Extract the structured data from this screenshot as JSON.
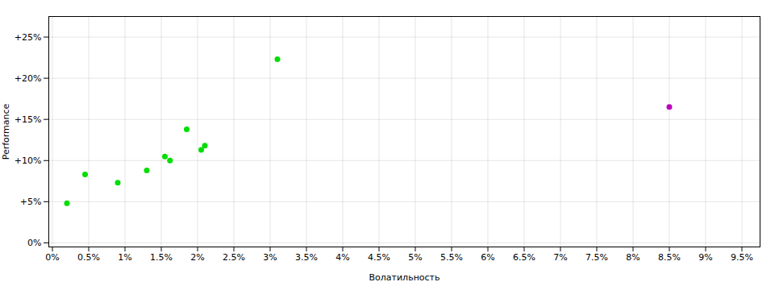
{
  "chart_data": {
    "type": "scatter",
    "xlabel": "Волатильность",
    "ylabel": "Performance",
    "series": [
      {
        "color": "#00dd00",
        "x": [
          0.2,
          0.45,
          0.9,
          1.3,
          1.55,
          1.62,
          1.85,
          2.05,
          2.1,
          3.1
        ],
        "values": [
          4.8,
          8.3,
          7.3,
          8.8,
          10.5,
          10.0,
          13.8,
          11.3,
          11.8,
          22.3
        ]
      },
      {
        "color": "#bb00bb",
        "x": [
          8.5
        ],
        "values": [
          16.5
        ]
      }
    ],
    "xlim": [
      -0.05,
      9.75
    ],
    "ylim": [
      -0.5,
      27.5
    ],
    "xticks": [
      {
        "value": 0.0,
        "label": "0%"
      },
      {
        "value": 0.5,
        "label": "0.5%"
      },
      {
        "value": 1.0,
        "label": "1%"
      },
      {
        "value": 1.5,
        "label": "1.5%"
      },
      {
        "value": 2.0,
        "label": "2%"
      },
      {
        "value": 2.5,
        "label": "2.5%"
      },
      {
        "value": 3.0,
        "label": "3%"
      },
      {
        "value": 3.5,
        "label": "3.5%"
      },
      {
        "value": 4.0,
        "label": "4%"
      },
      {
        "value": 4.5,
        "label": "4.5%"
      },
      {
        "value": 5.0,
        "label": "5%"
      },
      {
        "value": 5.5,
        "label": "5.5%"
      },
      {
        "value": 6.0,
        "label": "6%"
      },
      {
        "value": 6.5,
        "label": "6.5%"
      },
      {
        "value": 7.0,
        "label": "7%"
      },
      {
        "value": 7.5,
        "label": "7.5%"
      },
      {
        "value": 8.0,
        "label": "8%"
      },
      {
        "value": 8.5,
        "label": "8.5%"
      },
      {
        "value": 9.0,
        "label": "9%"
      },
      {
        "value": 9.5,
        "label": "9.5%"
      }
    ],
    "yticks": [
      {
        "value": 0,
        "label": "0%"
      },
      {
        "value": 5,
        "label": "+5%"
      },
      {
        "value": 10,
        "label": "+10%"
      },
      {
        "value": 15,
        "label": "+15%"
      },
      {
        "value": 20,
        "label": "+20%"
      },
      {
        "value": 25,
        "label": "+25%"
      }
    ],
    "grid": true
  }
}
